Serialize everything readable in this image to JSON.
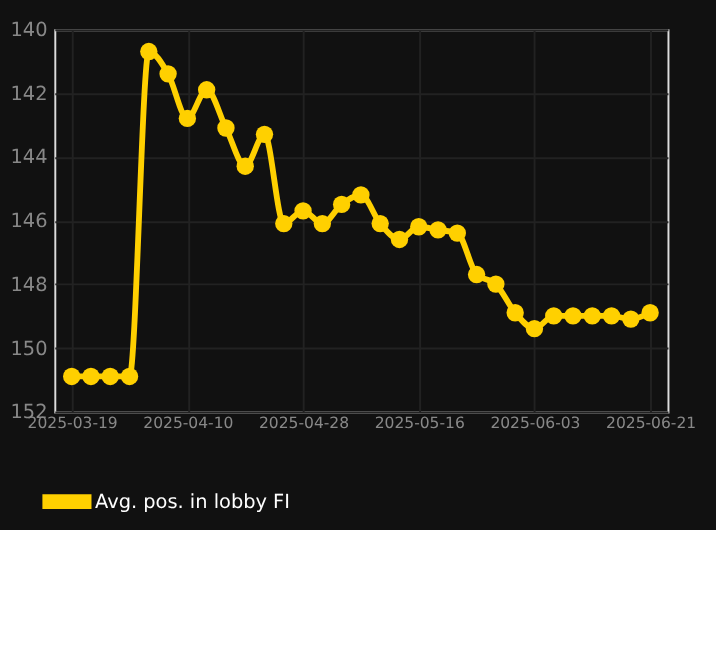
{
  "chart_data": {
    "type": "line",
    "categories": [
      "2025-03-19",
      null,
      null,
      null,
      null,
      null,
      "2025-04-10",
      null,
      null,
      null,
      null,
      null,
      "2025-04-28",
      null,
      null,
      null,
      null,
      null,
      "2025-05-16",
      null,
      null,
      null,
      null,
      null,
      "2025-06-03",
      null,
      null,
      null,
      null,
      null,
      "2025-06-21"
    ],
    "series": [
      {
        "name": "Avg. pos. in lobby FI",
        "color": "#ffd000",
        "values": [
          150.9,
          150.9,
          150.9,
          150.9,
          140.7,
          141.4,
          142.8,
          141.9,
          143.1,
          144.3,
          143.3,
          146.1,
          145.7,
          146.1,
          145.5,
          145.2,
          146.1,
          146.6,
          146.2,
          146.3,
          146.4,
          147.7,
          148.0,
          148.9,
          149.4,
          149.0,
          149.0,
          149.0,
          149.0,
          149.1,
          148.9
        ]
      }
    ],
    "ylim": [
      152,
      140
    ],
    "yticks": [
      140,
      142,
      144,
      146,
      148,
      150,
      152
    ],
    "grid": true,
    "legend": "bottom",
    "marker": "circle",
    "line_style": "solid"
  }
}
